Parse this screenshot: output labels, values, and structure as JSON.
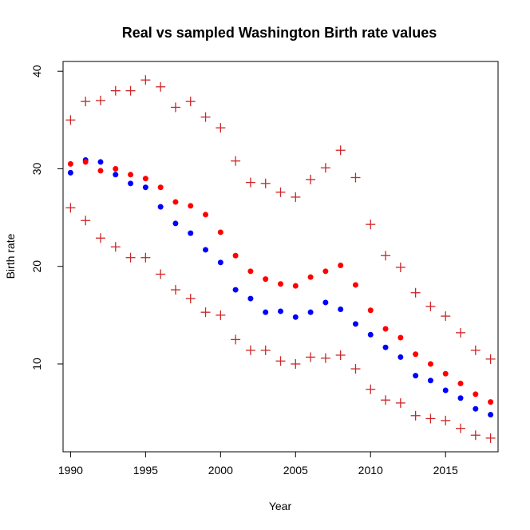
{
  "chart_data": {
    "type": "scatter",
    "title": "Real vs sampled Washington Birth rate values",
    "xlabel": "Year",
    "ylabel": "Birth rate",
    "xlim": [
      1989.5,
      2018.5
    ],
    "ylim": [
      1,
      41
    ],
    "x_ticks": [
      1990,
      1995,
      2000,
      2005,
      2010,
      2015
    ],
    "y_ticks": [
      10,
      20,
      30,
      40
    ],
    "grid": false,
    "legend": "none",
    "x": [
      1990,
      1991,
      1992,
      1993,
      1994,
      1995,
      1996,
      1997,
      1998,
      1999,
      2000,
      2001,
      2002,
      2003,
      2004,
      2005,
      2006,
      2007,
      2008,
      2009,
      2010,
      2011,
      2012,
      2013,
      2014,
      2015,
      2016,
      2017,
      2018
    ],
    "series": [
      {
        "marker": "dot",
        "color": "#0000ff",
        "values": [
          29.6,
          30.9,
          30.7,
          29.4,
          28.5,
          28.1,
          26.1,
          24.4,
          23.4,
          21.7,
          20.4,
          17.6,
          16.7,
          15.3,
          15.4,
          14.8,
          15.3,
          16.3,
          15.6,
          14.1,
          13.0,
          11.7,
          10.7,
          8.8,
          8.3,
          7.3,
          6.5,
          5.4,
          4.8
        ]
      },
      {
        "marker": "dot",
        "color": "#ff0000",
        "values": [
          30.5,
          30.7,
          29.8,
          30.0,
          29.4,
          29.0,
          28.1,
          26.6,
          26.2,
          25.3,
          23.5,
          21.1,
          19.5,
          18.7,
          18.2,
          18.0,
          18.9,
          19.5,
          20.1,
          18.1,
          15.5,
          13.6,
          12.7,
          11.0,
          10.0,
          9.0,
          8.0,
          6.9,
          6.1
        ]
      },
      {
        "marker": "plus",
        "color": "#cd2626",
        "values": [
          35.0,
          36.9,
          37.0,
          38.0,
          38.0,
          39.1,
          38.4,
          36.3,
          36.9,
          35.3,
          34.2,
          30.8,
          28.6,
          28.5,
          27.6,
          27.1,
          28.9,
          30.1,
          31.9,
          29.1,
          24.3,
          21.1,
          19.9,
          17.3,
          15.9,
          14.9,
          13.2,
          11.4,
          10.5
        ]
      },
      {
        "marker": "plus",
        "color": "#cd2626",
        "values": [
          26.0,
          24.7,
          22.9,
          22.0,
          20.9,
          20.9,
          19.2,
          17.6,
          16.7,
          15.3,
          15.0,
          12.5,
          11.4,
          11.4,
          10.3,
          10.0,
          10.7,
          10.6,
          10.9,
          9.5,
          7.4,
          6.3,
          6.0,
          4.7,
          4.4,
          4.2,
          3.4,
          2.7,
          2.4
        ]
      }
    ]
  }
}
